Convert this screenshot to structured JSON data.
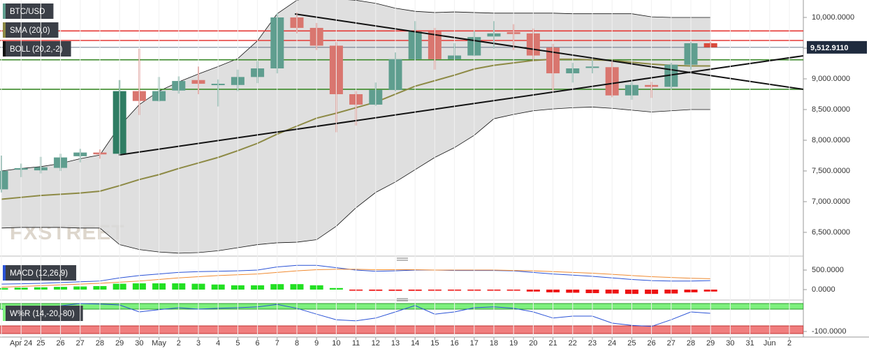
{
  "chart_data": [
    {
      "type": "candlestick",
      "title": "BTC/USD",
      "watermark": "FXSTREET",
      "categories": [
        null,
        "Apr 24",
        "25",
        "26",
        "27",
        "28",
        "29",
        "30",
        "May",
        "2",
        "3",
        "4",
        "5",
        "6",
        "7",
        "8",
        "9",
        "10",
        "11",
        "12",
        "13",
        "14",
        "15",
        "16",
        "17",
        "18",
        "19",
        "20",
        "21",
        "22",
        "23",
        "24",
        "25",
        "26",
        "27",
        "28",
        "29",
        "30",
        "31",
        "Jun",
        "2"
      ],
      "open": [
        7200,
        7520,
        7510,
        7550,
        7740,
        7800,
        7780,
        8800,
        8640,
        8810,
        8980,
        8900,
        8900,
        9030,
        9170,
        10000,
        9830,
        9540,
        8750,
        8580,
        8820,
        9320,
        9770,
        9320,
        9380,
        9690,
        9760,
        9740,
        9510,
        9090,
        9180,
        9190,
        8730,
        8900,
        8870,
        9230,
        9580,
        null,
        null,
        null,
        null
      ],
      "high": [
        7750,
        7620,
        7730,
        7780,
        7860,
        7850,
        8980,
        9490,
        9030,
        9040,
        9200,
        8990,
        9150,
        9290,
        10070,
        10080,
        9910,
        9600,
        8800,
        8940,
        9430,
        9940,
        9830,
        9580,
        9780,
        9940,
        9890,
        9820,
        9570,
        9260,
        9300,
        9290,
        8950,
        8950,
        9260,
        9600,
        9600,
        null,
        null,
        null,
        null
      ],
      "low": [
        7150,
        7400,
        7460,
        7500,
        7640,
        7700,
        7760,
        8410,
        8630,
        8760,
        8750,
        8550,
        8800,
        8930,
        9090,
        9740,
        9470,
        8130,
        8240,
        8560,
        8800,
        9300,
        9150,
        9310,
        9370,
        9490,
        9470,
        9320,
        8810,
        8940,
        9090,
        8700,
        8660,
        8690,
        8840,
        9150,
        9510,
        null,
        null,
        null,
        null
      ],
      "close": [
        7500,
        7545,
        7560,
        7720,
        7800,
        7770,
        8800,
        8640,
        8800,
        8965,
        8920,
        8920,
        9030,
        9170,
        10000,
        9830,
        9540,
        8750,
        8580,
        8820,
        9320,
        9770,
        9320,
        9380,
        9680,
        9740,
        9730,
        9380,
        9090,
        9170,
        9200,
        8730,
        8900,
        8870,
        9230,
        9580,
        9512.911,
        null,
        null,
        null,
        null
      ],
      "last_price_label": "9,512.9110",
      "up_color": "#5f9e8f",
      "down_color": "#d9766f",
      "strong_up_color": "#2f7d63",
      "strong_down_color": "#d94a3c",
      "overlays": [
        {
          "name": "SMA (20,0)",
          "color": "#8d8a45",
          "values": [
            7040,
            7070,
            7100,
            7120,
            7140,
            7170,
            7260,
            7360,
            7440,
            7540,
            7630,
            7720,
            7830,
            7950,
            8100,
            8230,
            8360,
            8440,
            8530,
            8620,
            8750,
            8880,
            8970,
            9060,
            9160,
            9220,
            9260,
            9300,
            9320,
            9320,
            9310,
            9300,
            9270,
            9240,
            9220,
            9210,
            9210,
            null,
            null,
            null,
            null
          ]
        },
        {
          "name": "BOLL (20,2,-2)",
          "color": "#111111",
          "upper": [
            7500,
            7540,
            7570,
            7620,
            7700,
            7760,
            8230,
            8580,
            8800,
            8950,
            9080,
            9200,
            9330,
            9620,
            10060,
            10280,
            10350,
            10300,
            10280,
            10230,
            10150,
            10100,
            10080,
            10090,
            10080,
            10070,
            10070,
            10070,
            10070,
            10060,
            10060,
            10060,
            10060,
            10010,
            10000,
            10000,
            10000,
            null,
            null,
            null,
            null
          ],
          "lower": [
            6570,
            6580,
            6580,
            6580,
            6570,
            6570,
            6300,
            6220,
            6180,
            6160,
            6170,
            6200,
            6250,
            6300,
            6330,
            6340,
            6380,
            6600,
            6900,
            7150,
            7320,
            7520,
            7720,
            7880,
            8080,
            8350,
            8420,
            8480,
            8510,
            8530,
            8540,
            8520,
            8490,
            8460,
            8480,
            8500,
            8500,
            null,
            null,
            null,
            null
          ]
        }
      ],
      "h_lines": [
        {
          "value": 9780,
          "color": "#e53935"
        },
        {
          "value": 9625,
          "color": "#e53935"
        },
        {
          "value": 9310,
          "color": "#3b8a2a"
        },
        {
          "value": 8830,
          "color": "#3b8a2a"
        }
      ],
      "trend_lines": [
        {
          "x": [
            5.96,
            40.7
          ],
          "y": [
            7760,
            9375
          ],
          "color": "#111111"
        },
        {
          "x": [
            14.9,
            40.7
          ],
          "y": [
            10057,
            8830
          ],
          "color": "#111111"
        }
      ],
      "ylim": [
        6136,
        10284
      ],
      "yticks": [
        {
          "value": 6500,
          "label": "6,500.0000"
        },
        {
          "value": 7000,
          "label": "7,000.0000"
        },
        {
          "value": 7500,
          "label": "7,500.0000"
        },
        {
          "value": 8000,
          "label": "8,000.0000"
        },
        {
          "value": 8500,
          "label": "8,500.0000"
        },
        {
          "value": 9000,
          "label": "9,000.0000"
        },
        {
          "value": 9500,
          "label": "9,500.0000"
        },
        {
          "value": 10000,
          "label": "10,000.0000"
        }
      ]
    },
    {
      "type": "macd",
      "title": "MACD (12,26,9)",
      "series": [
        {
          "color": "#2a52d6",
          "values": [
            140,
            150,
            160,
            180,
            200,
            220,
            300,
            360,
            400,
            440,
            460,
            470,
            480,
            500,
            580,
            620,
            620,
            560,
            500,
            470,
            480,
            500,
            500,
            490,
            490,
            490,
            480,
            440,
            400,
            370,
            340,
            300,
            260,
            230,
            220,
            220,
            230,
            null,
            null,
            null,
            null
          ]
        },
        {
          "color": "#f08a30",
          "values": [
            60,
            80,
            100,
            120,
            140,
            160,
            190,
            220,
            260,
            300,
            330,
            360,
            380,
            400,
            440,
            480,
            510,
            520,
            520,
            510,
            510,
            510,
            500,
            500,
            500,
            500,
            490,
            480,
            460,
            440,
            420,
            390,
            360,
            330,
            310,
            290,
            280,
            null,
            null,
            null,
            null
          ]
        }
      ],
      "histogram": {
        "up_color": "#22e022",
        "down_color": "#ee1111",
        "values": [
          40,
          50,
          60,
          70,
          80,
          90,
          150,
          160,
          160,
          160,
          150,
          130,
          110,
          110,
          140,
          140,
          110,
          40,
          -20,
          -30,
          -30,
          -30,
          -20,
          -20,
          -20,
          -20,
          -20,
          -50,
          -70,
          -80,
          -90,
          -100,
          -110,
          -110,
          -100,
          -70,
          -50,
          null,
          null,
          null,
          null
        ]
      },
      "ylim": [
        -232,
        768
      ],
      "yticks": [
        {
          "value": 0,
          "label": "0.0000"
        },
        {
          "value": 500,
          "label": "500.0000"
        }
      ]
    },
    {
      "type": "line",
      "title": "W%R (14,-20,-80)",
      "levels": [
        -20,
        -80
      ],
      "level_colors": [
        "#7ef07e",
        "#f07e7e"
      ],
      "series": [
        {
          "color": "#2a52d6",
          "values": [
            -22,
            -15,
            -12,
            -8,
            0,
            -2,
            -5,
            -30,
            -22,
            -15,
            -20,
            -17,
            -15,
            -12,
            -3,
            -17,
            -38,
            -58,
            -62,
            -52,
            -30,
            -7,
            -38,
            -30,
            -15,
            -12,
            -17,
            -30,
            -52,
            -45,
            -45,
            -70,
            -78,
            -82,
            -58,
            -30,
            -35,
            null,
            null,
            null,
            null
          ]
        }
      ],
      "ylim": [
        -117.5,
        7.5
      ],
      "yticks": [
        {
          "value": -100,
          "label": "-100.0000"
        }
      ]
    }
  ]
}
